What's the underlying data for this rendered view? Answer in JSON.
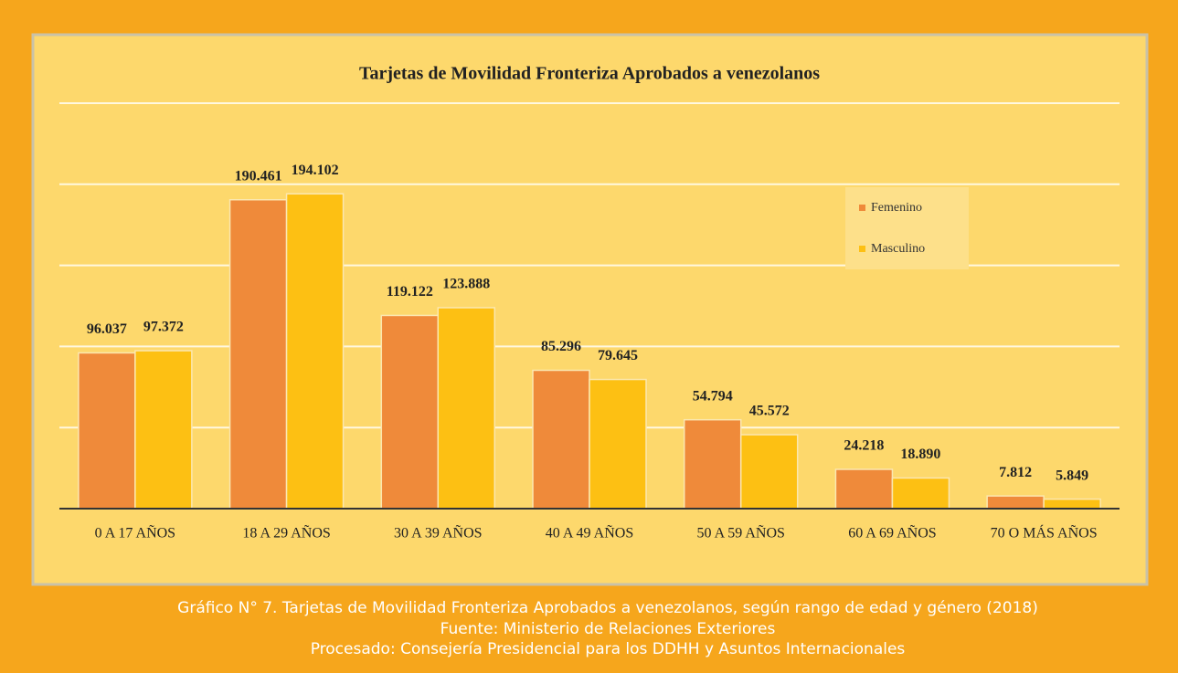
{
  "chart_data": {
    "type": "bar",
    "title": "Tarjetas de Movilidad Fronteriza Aprobados a venezolanos",
    "categories": [
      "0 A 17 AÑOS",
      "18 A 29 AÑOS",
      "30 A 39 AÑOS",
      "40 A 49 AÑOS",
      "50 A 59 AÑOS",
      "60 A 69 AÑOS",
      "70 O MÁS AÑOS"
    ],
    "series": [
      {
        "name": "Femenino",
        "color": "#ef8a3a",
        "values": [
          96037,
          190461,
          119122,
          85296,
          54794,
          24218,
          7812
        ],
        "value_labels": [
          "96.037",
          "190.461",
          "119.122",
          "85.296",
          "54.794",
          "24.218",
          "7.812"
        ]
      },
      {
        "name": "Masculino",
        "color": "#fdc013",
        "values": [
          97372,
          194102,
          123888,
          79645,
          45572,
          18890,
          5849
        ],
        "value_labels": [
          "97.372",
          "194.102",
          "123.888",
          "79.645",
          "45.572",
          "18.890",
          "5.849"
        ]
      }
    ],
    "ylim": [
      0,
      250000
    ],
    "yticks": [
      0,
      50000,
      100000,
      150000,
      200000,
      250000
    ],
    "grid": true,
    "legend": "top-right"
  },
  "caption": [
    "Gráfico N° 7. Tarjetas de Movilidad Fronteriza Aprobados a venezolanos, según rango de edad y género (2018)",
    "Fuente: Ministerio de Relaciones Exteriores",
    "Procesado: Consejería Presidencial para los DDHH y Asuntos Internacionales"
  ]
}
